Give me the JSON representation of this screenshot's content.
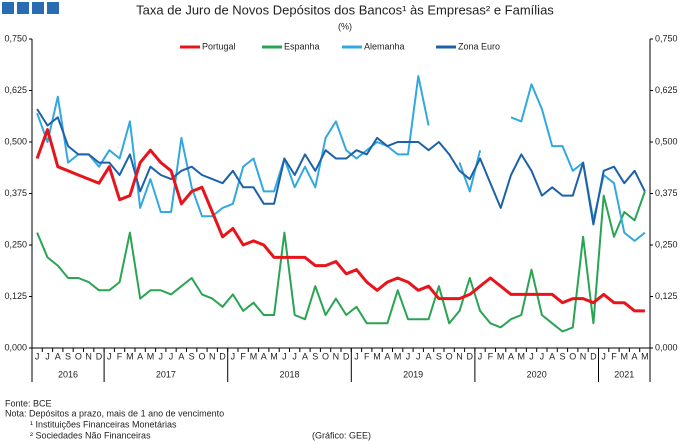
{
  "chart_data": {
    "type": "line",
    "title": "Taxa de Juro de Novos Depósitos dos Bancos¹ às Empresas² e Famílias",
    "subtitle": "(%)",
    "categories": [
      "J",
      "J",
      "A",
      "S",
      "O",
      "N",
      "D",
      "J",
      "F",
      "M",
      "A",
      "M",
      "J",
      "J",
      "A",
      "S",
      "O",
      "N",
      "D",
      "J",
      "F",
      "M",
      "A",
      "M",
      "J",
      "J",
      "A",
      "S",
      "O",
      "N",
      "D",
      "J",
      "F",
      "M",
      "A",
      "M",
      "J",
      "J",
      "A",
      "S",
      "O",
      "N",
      "D",
      "J",
      "F",
      "M",
      "A",
      "M",
      "J",
      "J",
      "A",
      "S",
      "O",
      "N",
      "D",
      "J",
      "F",
      "M",
      "A",
      "M"
    ],
    "years": [
      "2016",
      "2017",
      "2018",
      "2019",
      "2020",
      "2021"
    ],
    "series": [
      {
        "name": "Portugal",
        "color": "#e8141b",
        "values": [
          0.46,
          0.53,
          0.44,
          0.43,
          0.42,
          0.41,
          0.4,
          0.44,
          0.36,
          0.37,
          0.45,
          0.48,
          0.45,
          0.43,
          0.35,
          0.38,
          0.39,
          0.33,
          0.27,
          0.29,
          0.25,
          0.26,
          0.25,
          0.22,
          0.22,
          0.22,
          0.22,
          0.2,
          0.2,
          0.21,
          0.18,
          0.19,
          0.16,
          0.14,
          0.16,
          0.17,
          0.16,
          0.14,
          0.15,
          0.12,
          0.12,
          0.12,
          0.13,
          0.15,
          0.17,
          0.15,
          0.13,
          0.13,
          0.13,
          0.13,
          0.13,
          0.11,
          0.12,
          0.12,
          0.11,
          0.13,
          0.11,
          0.11,
          0.09,
          0.09
        ]
      },
      {
        "name": "Espanha",
        "color": "#2aa452",
        "values": [
          0.28,
          0.22,
          0.2,
          0.17,
          0.17,
          0.16,
          0.14,
          0.14,
          0.16,
          0.28,
          0.12,
          0.14,
          0.14,
          0.13,
          0.15,
          0.17,
          0.13,
          0.12,
          0.1,
          0.13,
          0.09,
          0.11,
          0.08,
          0.08,
          0.28,
          0.08,
          0.07,
          0.15,
          0.08,
          0.12,
          0.08,
          0.1,
          0.06,
          0.06,
          0.06,
          0.14,
          0.07,
          0.07,
          0.07,
          0.15,
          0.06,
          0.09,
          0.17,
          0.09,
          0.06,
          0.05,
          0.07,
          0.08,
          0.19,
          0.08,
          0.06,
          0.04,
          0.05,
          0.27,
          0.06,
          0.37,
          0.27,
          0.33,
          0.31,
          0.38
        ]
      },
      {
        "name": "Alemanha",
        "color": "#33a8e0",
        "values": [
          0.57,
          0.5,
          0.61,
          0.45,
          0.47,
          0.47,
          0.44,
          0.48,
          0.46,
          0.55,
          0.34,
          0.41,
          0.33,
          0.33,
          0.51,
          0.39,
          0.32,
          0.32,
          0.34,
          0.35,
          0.44,
          0.46,
          0.38,
          0.38,
          0.46,
          0.39,
          0.44,
          0.39,
          0.51,
          0.55,
          0.48,
          0.46,
          0.48,
          0.5,
          0.49,
          0.47,
          0.47,
          0.66,
          0.54,
          null,
          null,
          0.45,
          0.38,
          0.48,
          null,
          null,
          0.56,
          0.55,
          0.64,
          0.58,
          0.49,
          0.49,
          0.43,
          0.45,
          0.31,
          0.42,
          0.4,
          0.28,
          0.26,
          0.28
        ]
      },
      {
        "name": "Zona Euro",
        "color": "#1d62a8",
        "values": [
          0.58,
          0.54,
          0.56,
          0.49,
          0.47,
          0.47,
          0.45,
          0.45,
          0.42,
          0.47,
          0.38,
          0.44,
          0.42,
          0.41,
          0.43,
          0.44,
          0.42,
          0.41,
          0.4,
          0.43,
          0.39,
          0.39,
          0.35,
          0.35,
          0.46,
          0.42,
          0.47,
          0.43,
          0.48,
          0.46,
          0.46,
          0.48,
          0.47,
          0.51,
          0.49,
          0.5,
          0.5,
          0.5,
          0.48,
          0.5,
          0.47,
          0.43,
          0.41,
          0.46,
          0.4,
          0.34,
          0.42,
          0.47,
          0.43,
          0.37,
          0.39,
          0.37,
          0.37,
          0.45,
          0.3,
          0.43,
          0.44,
          0.4,
          0.43,
          0.38
        ]
      }
    ],
    "ylim": [
      0,
      0.75
    ],
    "yticks": [
      {
        "value": 0,
        "label": "0,000"
      },
      {
        "value": 0.125,
        "label": "0,125"
      },
      {
        "value": 0.25,
        "label": "0,250"
      },
      {
        "value": 0.375,
        "label": "0,375"
      },
      {
        "value": 0.5,
        "label": "0,500"
      },
      {
        "value": 0.625,
        "label": "0,625"
      },
      {
        "value": 0.75,
        "label": "0,750"
      }
    ],
    "grid": false,
    "notes": [
      "Fonte: BCE",
      "Nota: Depósitos a prazo, mais de 1 ano de vencimento",
      "¹ Instituições Financeiras Monetárias",
      "² Sociedades Não Financeiras"
    ],
    "source": "(Gráfico: GEE)"
  }
}
